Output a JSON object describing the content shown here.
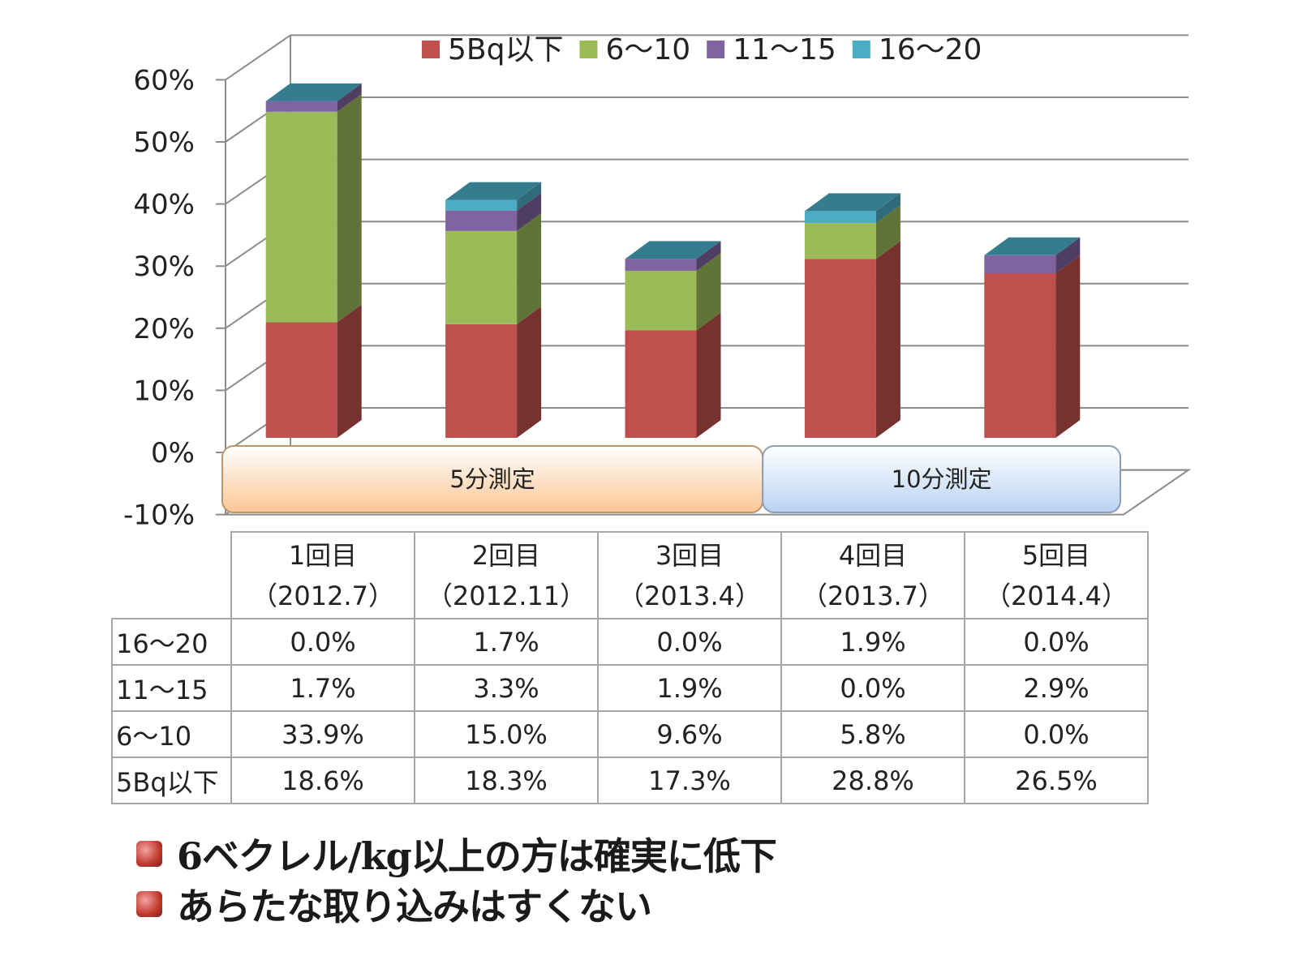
{
  "chart_data": {
    "type": "bar",
    "stacked": true,
    "three_d": true,
    "categories": [
      "1回目\n（2012.7）",
      "2回目\n（2012.11）",
      "3回目\n（2013.4）",
      "4回目\n（2013.7）",
      "5回目\n（2014.4）"
    ],
    "series": [
      {
        "name": "5Bq以下",
        "color": "#c0504d",
        "values": [
          18.6,
          18.3,
          17.3,
          28.8,
          26.5
        ]
      },
      {
        "name": "6～10",
        "color": "#9bbb59",
        "values": [
          33.9,
          15.0,
          9.6,
          5.8,
          0.0
        ]
      },
      {
        "name": "11～15",
        "color": "#8064a2",
        "values": [
          1.7,
          3.3,
          1.9,
          0.0,
          2.9
        ]
      },
      {
        "name": "16～20",
        "color": "#4bacc6",
        "values": [
          0.0,
          1.7,
          0.0,
          1.9,
          0.0
        ]
      }
    ],
    "ylim": [
      -10,
      60
    ],
    "yticks": [
      "-10%",
      "0%",
      "10%",
      "20%",
      "30%",
      "40%",
      "50%",
      "60%"
    ],
    "legend_position": "top",
    "grid": true,
    "bands": [
      {
        "label": "5分測定",
        "from_category": 0,
        "to_category": 2,
        "color": "#fbc694"
      },
      {
        "label": "10分測定",
        "from_category": 3,
        "to_category": 4,
        "color": "#b9d3f3"
      }
    ]
  },
  "table": {
    "columns": [
      {
        "line1": "1回目",
        "line2": "（2012.7）"
      },
      {
        "line1": "2回目",
        "line2": "（2012.11）"
      },
      {
        "line1": "3回目",
        "line2": "（2013.4）"
      },
      {
        "line1": "4回目",
        "line2": "（2013.7）"
      },
      {
        "line1": "5回目",
        "line2": "（2014.4）"
      }
    ],
    "rows": [
      {
        "label": "16～20",
        "cells": [
          "0.0%",
          "1.7%",
          "0.0%",
          "1.9%",
          "0.0%"
        ]
      },
      {
        "label": "11～15",
        "cells": [
          "1.7%",
          "3.3%",
          "1.9%",
          "0.0%",
          "2.9%"
        ]
      },
      {
        "label": "6～10",
        "cells": [
          "33.9%",
          "15.0%",
          "9.6%",
          "5.8%",
          "0.0%"
        ]
      },
      {
        "label": "5Bq以下",
        "cells": [
          "18.6%",
          "18.3%",
          "17.3%",
          "28.8%",
          "26.5%"
        ]
      }
    ]
  },
  "notes": [
    "6ベクレル/kg以上の方は確実に低下",
    "あらたな取り込みはすくない"
  ]
}
